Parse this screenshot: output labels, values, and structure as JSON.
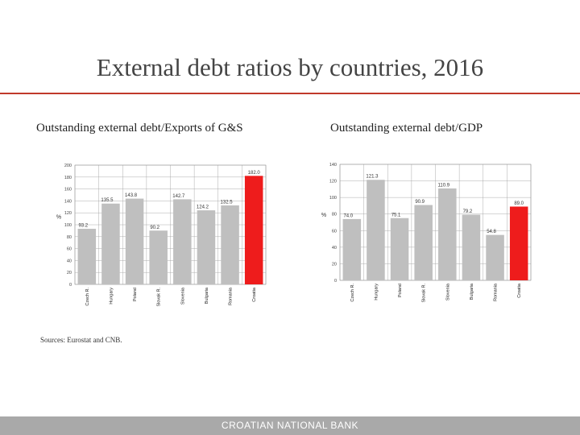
{
  "slide": {
    "title": "External debt ratios by countries, 2016",
    "subtitle_left": "Outstanding external debt/Exports of G&S",
    "subtitle_right": "Outstanding external debt/GDP",
    "sources": "Sources: Eurostat and CNB.",
    "footer": "CROATIAN NATIONAL BANK",
    "accent_color": "#c0392b",
    "footer_color": "#a9a9a9"
  },
  "chart_data": [
    {
      "type": "bar",
      "ylabel": "%",
      "ylim": [
        0,
        200
      ],
      "yticks": [
        0,
        20,
        40,
        60,
        80,
        100,
        120,
        140,
        160,
        180,
        200
      ],
      "grid": true,
      "categories": [
        "Czech R.",
        "Hungary",
        "Poland",
        "Slovak R.",
        "Slovenia",
        "Bulgaria",
        "Romania",
        "Croatia"
      ],
      "values": [
        93.2,
        135.5,
        143.8,
        90.2,
        142.7,
        124.2,
        132.5,
        182.0
      ],
      "labels": [
        "93.2",
        "135.5",
        "143.8",
        "90.2",
        "142.7",
        "124.2",
        "132.5",
        "182.0"
      ],
      "bar_color": "#bfbfbf",
      "highlight_color": "#ee1c1c",
      "highlight_category": "Croatia"
    },
    {
      "type": "bar",
      "ylabel": "%",
      "ylim": [
        0,
        140
      ],
      "yticks": [
        0,
        20,
        40,
        60,
        80,
        100,
        120,
        140
      ],
      "grid": true,
      "categories": [
        "Czech R.",
        "Hungary",
        "Poland",
        "Slovak R.",
        "Slovenia",
        "Bulgaria",
        "Romania",
        "Croatia"
      ],
      "values": [
        74.0,
        121.3,
        75.1,
        90.9,
        110.9,
        79.2,
        54.8,
        89.0
      ],
      "labels": [
        "74.0",
        "121.3",
        "75.1",
        "90.9",
        "110.9",
        "79.2",
        "54.8",
        "89.0"
      ],
      "bar_color": "#bfbfbf",
      "highlight_color": "#ee1c1c",
      "highlight_category": "Croatia"
    }
  ]
}
